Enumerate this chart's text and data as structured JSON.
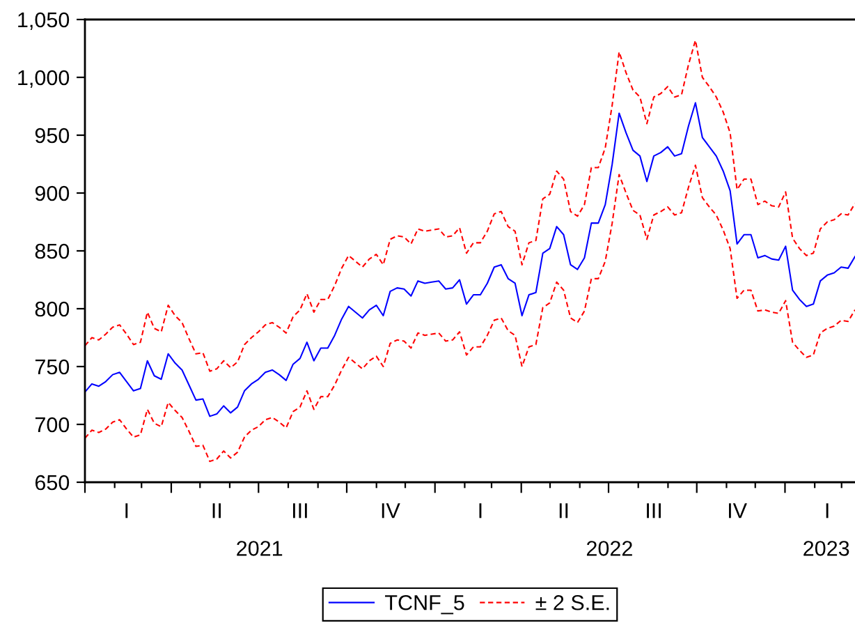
{
  "chart_data": {
    "type": "line",
    "categories": [
      null,
      null,
      null,
      null,
      null,
      null,
      "I",
      null,
      null,
      null,
      null,
      null,
      null,
      null,
      null,
      null,
      null,
      null,
      null,
      "II",
      null,
      null,
      null,
      null,
      null,
      null,
      null,
      null,
      null,
      null,
      null,
      "III",
      null,
      null,
      null,
      null,
      null,
      null,
      null,
      null,
      null,
      null,
      null,
      null,
      "IV",
      null,
      null,
      null,
      null,
      null,
      null,
      null,
      null,
      null,
      null,
      null,
      null,
      "I",
      null,
      null,
      null,
      null,
      null,
      null,
      null,
      null,
      null,
      null,
      null,
      "II",
      null,
      null,
      null,
      null,
      null,
      null,
      null,
      null,
      null,
      null,
      null,
      null,
      "III",
      null,
      null,
      null,
      null,
      null,
      null,
      null,
      null,
      null,
      null,
      null,
      "IV",
      null,
      null,
      null,
      null,
      null,
      null,
      null,
      null,
      null,
      null,
      null,
      null,
      "I",
      null,
      null,
      null,
      null
    ],
    "x2lim": [
      "2021-01-01",
      "2023-03-15"
    ],
    "x2ticks": [
      {
        "value": "2021-01-01",
        "label": null
      },
      {
        "value": "2021-02-01",
        "label": null
      },
      {
        "value": "2021-03-01",
        "label": null
      },
      {
        "value": "2021-04-01",
        "label": null
      },
      {
        "value": "2021-05-01",
        "label": null
      },
      {
        "value": "2021-06-01",
        "label": null
      },
      {
        "value": "2021-07-01",
        "label": null
      },
      {
        "value": "2021-08-01",
        "label": null
      },
      {
        "value": "2021-09-01",
        "label": null
      },
      {
        "value": "2021-10-01",
        "label": null
      },
      {
        "value": "2021-11-01",
        "label": null
      },
      {
        "value": "2021-12-01",
        "label": null
      },
      {
        "value": "2022-01-01",
        "label": null
      },
      {
        "value": "2022-02-01",
        "label": null
      },
      {
        "value": "2022-03-01",
        "label": null
      },
      {
        "value": "2022-04-01",
        "label": null
      },
      {
        "value": "2022-05-01",
        "label": null
      },
      {
        "value": "2022-06-01",
        "label": null
      },
      {
        "value": "2022-07-01",
        "label": null
      },
      {
        "value": "2022-08-01",
        "label": null
      },
      {
        "value": "2022-09-01",
        "label": null
      },
      {
        "value": "2022-10-01",
        "label": null
      },
      {
        "value": "2022-11-01",
        "label": null
      },
      {
        "value": "2022-12-01",
        "label": null
      },
      {
        "value": "2023-01-01",
        "label": null
      },
      {
        "value": "2023-02-01",
        "label": null
      },
      {
        "value": "2023-03-01",
        "label": null
      },
      {
        "value": "2021-07-02",
        "label": "2021"
      },
      {
        "value": "2022-07-02",
        "label": "2022"
      },
      {
        "value": "2023-02-13",
        "label": "2023"
      }
    ],
    "ylim": [
      650,
      1050
    ],
    "yticks": [
      650,
      700,
      750,
      800,
      850,
      900,
      950,
      {
        "value": 1000,
        "label": "1,000"
      },
      {
        "value": 1050,
        "label": "1,050"
      }
    ],
    "legend": "bottom",
    "series": [
      {
        "name": "TCNF_5",
        "color": "#0000ff",
        "line_style": "solid",
        "values": [
          728,
          735,
          733,
          737,
          743,
          745,
          737,
          729,
          731,
          755,
          742,
          739,
          761,
          753,
          747,
          734,
          721,
          722,
          707,
          709,
          716,
          710,
          715,
          729,
          735,
          739,
          745,
          747,
          743,
          738,
          752,
          757,
          771,
          755,
          766,
          766,
          777,
          791,
          802,
          797,
          792,
          799,
          803,
          794,
          815,
          818,
          817,
          811,
          824,
          822,
          823,
          824,
          817,
          818,
          825,
          804,
          812,
          812,
          822,
          836,
          838,
          826,
          822,
          794,
          812,
          814,
          848,
          852,
          871,
          864,
          838,
          834,
          844,
          874,
          874,
          890,
          925,
          969,
          952,
          937,
          932,
          910,
          932,
          935,
          940,
          932,
          934,
          958,
          978,
          948,
          940,
          932,
          919,
          902,
          856,
          864,
          864,
          844,
          846,
          843,
          842,
          854,
          816,
          808,
          802,
          804,
          824,
          829,
          831,
          836,
          835,
          845
        ]
      },
      {
        "name": "± 2 S.E.",
        "color": "#ff0000",
        "line_style": "dashed",
        "values": [
          768,
          775,
          773,
          778,
          784,
          786,
          778,
          769,
          771,
          797,
          783,
          780,
          803,
          794,
          788,
          774,
          761,
          762,
          746,
          748,
          755,
          749,
          754,
          769,
          775,
          780,
          786,
          788,
          784,
          779,
          793,
          799,
          813,
          797,
          808,
          808,
          820,
          835,
          846,
          841,
          836,
          843,
          847,
          838,
          860,
          863,
          862,
          856,
          869,
          867,
          868,
          869,
          862,
          863,
          870,
          848,
          857,
          857,
          867,
          882,
          884,
          871,
          867,
          838,
          857,
          859,
          895,
          899,
          919,
          912,
          884,
          880,
          890,
          922,
          922,
          939,
          976,
          1022,
          1004,
          989,
          983,
          960,
          983,
          986,
          992,
          983,
          985,
          1011,
          1032,
          1000,
          992,
          983,
          970,
          952,
          903,
          912,
          912,
          890,
          893,
          889,
          888,
          901,
          861,
          852,
          846,
          848,
          869,
          875,
          877,
          882,
          881,
          891
        ]
      },
      {
        "color": "#ff0000",
        "line_style": "dashed",
        "values": [
          688,
          695,
          693,
          696,
          702,
          704,
          696,
          689,
          691,
          713,
          701,
          698,
          719,
          712,
          706,
          694,
          681,
          682,
          668,
          670,
          677,
          671,
          676,
          689,
          695,
          698,
          704,
          706,
          702,
          697,
          711,
          715,
          729,
          713,
          724,
          724,
          734,
          747,
          758,
          753,
          748,
          755,
          759,
          750,
          770,
          773,
          772,
          766,
          779,
          777,
          778,
          779,
          772,
          773,
          780,
          760,
          767,
          767,
          777,
          790,
          792,
          781,
          777,
          750,
          767,
          769,
          801,
          805,
          823,
          816,
          792,
          788,
          798,
          826,
          826,
          841,
          874,
          916,
          900,
          885,
          881,
          860,
          881,
          884,
          888,
          881,
          883,
          905,
          924,
          896,
          888,
          881,
          868,
          852,
          809,
          816,
          816,
          798,
          799,
          797,
          796,
          807,
          771,
          764,
          758,
          760,
          779,
          783,
          785,
          790,
          789,
          799
        ]
      }
    ]
  }
}
